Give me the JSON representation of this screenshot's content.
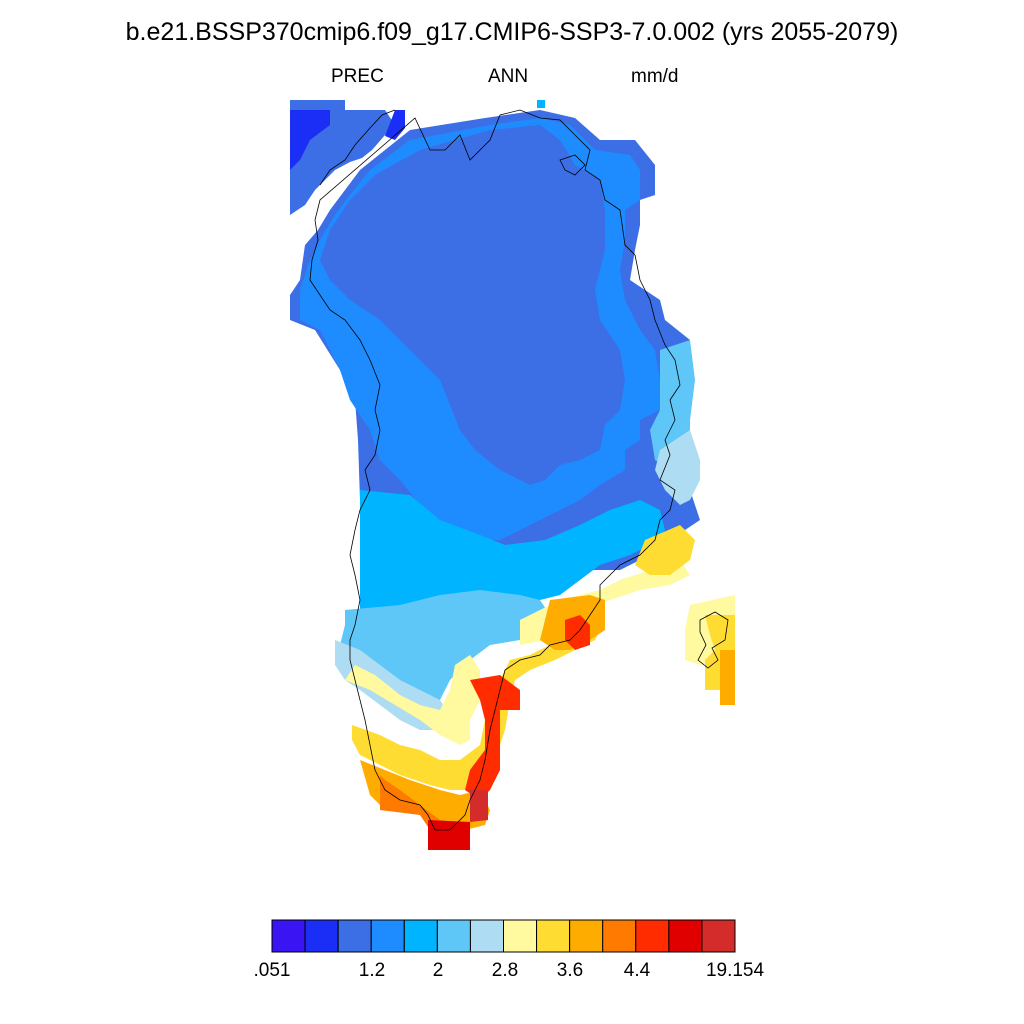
{
  "title": "b.e21.BSSP370cmip6.f09_g17.CMIP6-SSP3-7.0.002 (yrs 2055-2079)",
  "subtitle": {
    "variable": "PREC",
    "season": "ANN",
    "units": "mm/d"
  },
  "colorbar": {
    "colors": [
      "#3a14f2",
      "#1b2ef5",
      "#3c6ee6",
      "#1e8cff",
      "#00b4ff",
      "#5fc7f7",
      "#aedcf2",
      "#fff9a0",
      "#fedc32",
      "#fead00",
      "#ff7a00",
      "#ff2c00",
      "#e00000",
      "#d42b2b"
    ],
    "tick_labels": [
      ".051",
      "1.2",
      "2",
      "2.8",
      "3.6",
      "4.4",
      "19.154"
    ]
  },
  "map": {
    "region": "Greenland",
    "fill_color_indices": [
      1,
      2,
      3,
      4,
      5,
      6,
      7,
      8,
      9,
      10,
      11,
      12,
      13
    ]
  }
}
